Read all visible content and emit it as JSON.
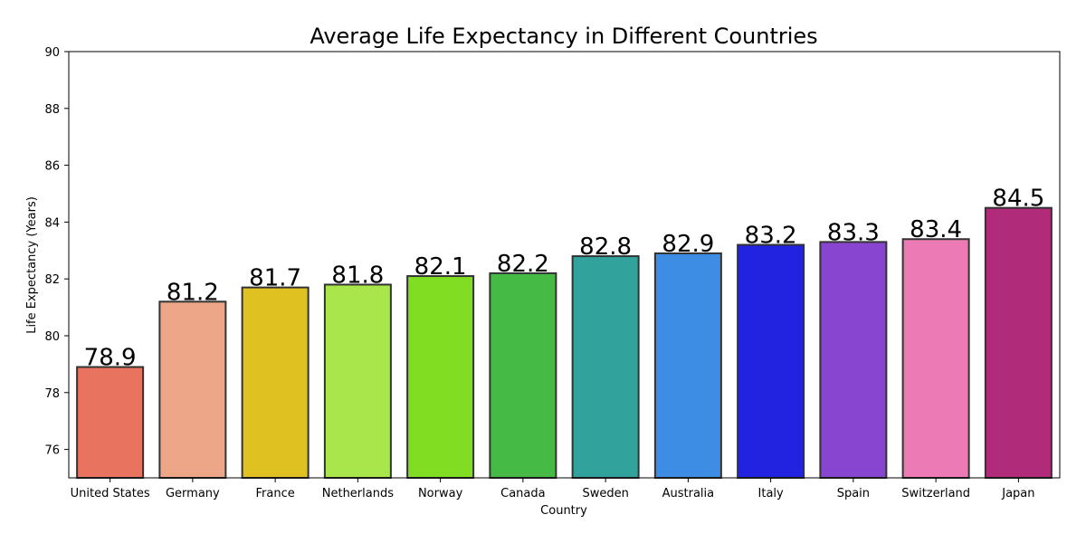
{
  "chart_data": {
    "type": "bar",
    "title": "Average Life Expectancy in Different Countries",
    "xlabel": "Country",
    "ylabel": "Life Expectancy (Years)",
    "ylim": [
      75,
      90
    ],
    "yticks": [
      76,
      78,
      80,
      82,
      84,
      86,
      88,
      90
    ],
    "grid": false,
    "categories": [
      "United States",
      "Germany",
      "France",
      "Netherlands",
      "Norway",
      "Canada",
      "Sweden",
      "Australia",
      "Italy",
      "Spain",
      "Switzerland",
      "Japan"
    ],
    "values": [
      78.9,
      81.2,
      81.7,
      81.8,
      82.1,
      82.2,
      82.8,
      82.9,
      83.2,
      83.3,
      83.4,
      84.5
    ],
    "value_labels": [
      "78.9",
      "81.2",
      "81.7",
      "81.8",
      "82.1",
      "82.2",
      "82.8",
      "82.9",
      "83.2",
      "83.3",
      "83.4",
      "84.5"
    ],
    "colors": [
      "#e8735f",
      "#eea689",
      "#dfc222",
      "#a8e64b",
      "#80dd22",
      "#45bb45",
      "#32a39c",
      "#3c8de3",
      "#2222e1",
      "#8845cf",
      "#ec7bb5",
      "#b02b79"
    ]
  }
}
